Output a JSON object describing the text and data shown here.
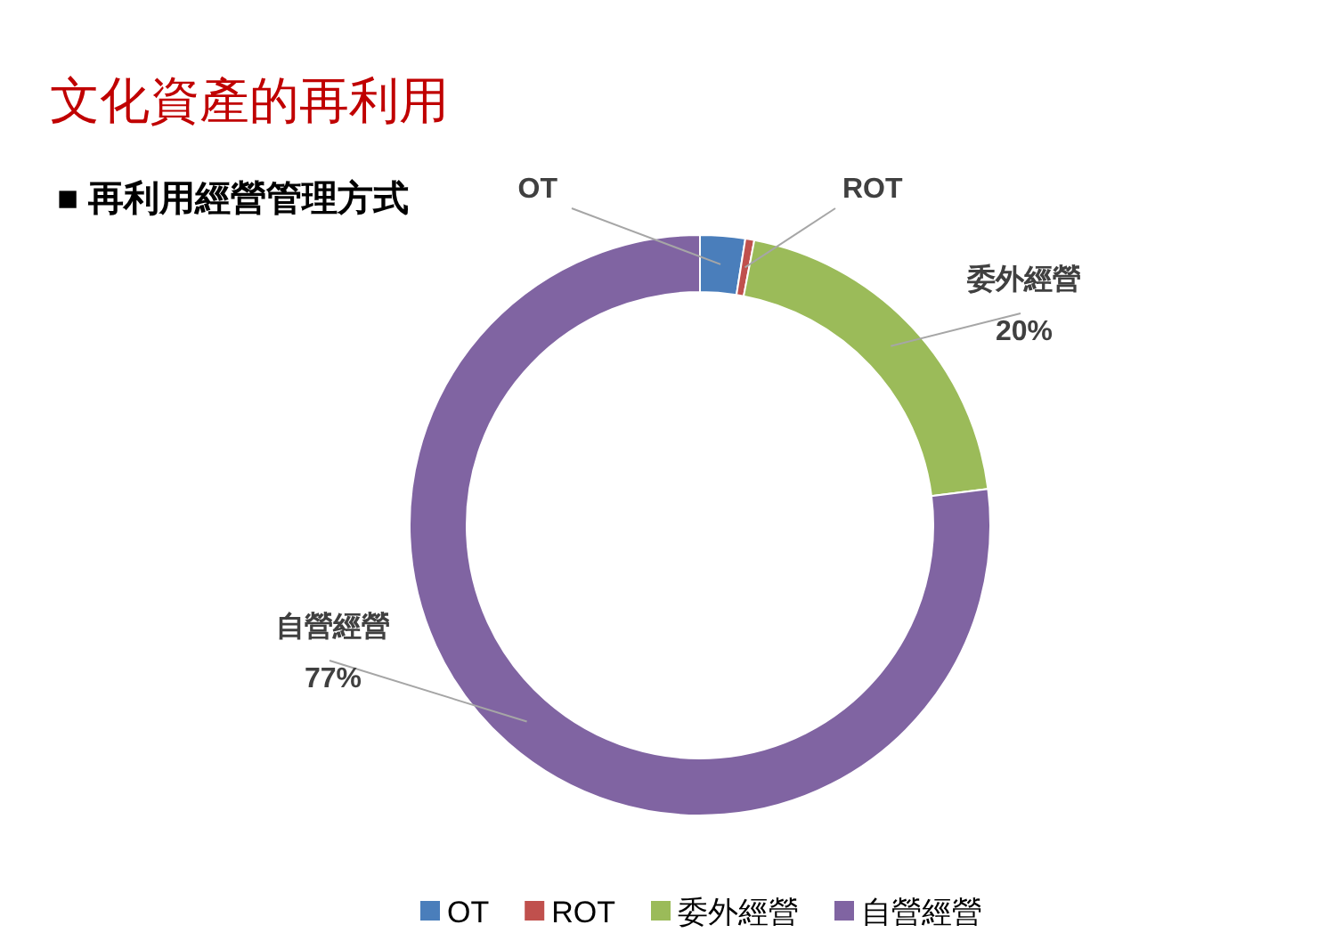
{
  "chart_data": {
    "type": "donut",
    "title": "文化資產的再利用",
    "subtitle": "■ 再利用經營管理方式",
    "categories": [
      "OT",
      "ROT",
      "委外經營",
      "自營經營"
    ],
    "values": [
      2.5,
      0.5,
      20,
      77
    ],
    "value_labels": [
      null,
      null,
      "20%",
      "77%"
    ],
    "colors": [
      "#4a7ebb",
      "#c0504d",
      "#9bbb59",
      "#8064a2"
    ],
    "legend": "bottom"
  }
}
